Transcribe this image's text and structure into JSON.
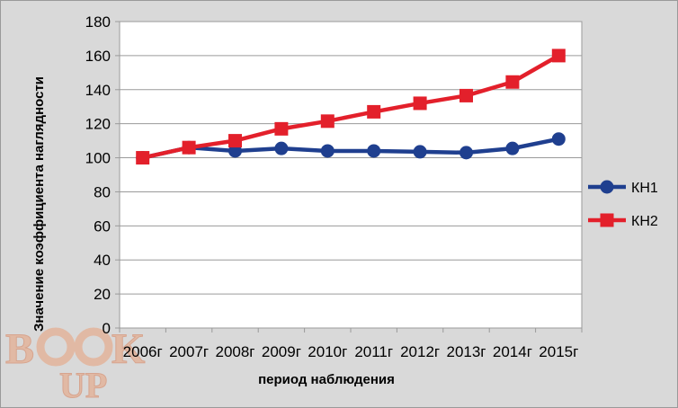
{
  "chart_data": {
    "type": "line",
    "title": "",
    "xlabel": "период наблюдения",
    "ylabel": "Значение коэффициента наглядности",
    "categories": [
      "2006г",
      "2007г",
      "2008г",
      "2009г",
      "2010г",
      "2011г",
      "2012г",
      "2013г",
      "2014г",
      "2015г"
    ],
    "ylim": [
      0,
      180
    ],
    "yticks": [
      0,
      20,
      40,
      60,
      80,
      100,
      120,
      140,
      160,
      180
    ],
    "grid": true,
    "legend_position": "right",
    "series": [
      {
        "name": "КН1",
        "color": "#1f3f8f",
        "marker": "circle",
        "values": [
          100,
          106,
          104,
          105.5,
          104,
          104,
          103.5,
          103,
          105.5,
          111
        ]
      },
      {
        "name": "КН2",
        "color": "#e3202b",
        "marker": "square",
        "values": [
          100,
          106,
          110,
          117,
          121.5,
          127,
          132,
          136.5,
          144.5,
          160
        ]
      }
    ]
  },
  "watermark": {
    "text": "BOOK UP"
  }
}
